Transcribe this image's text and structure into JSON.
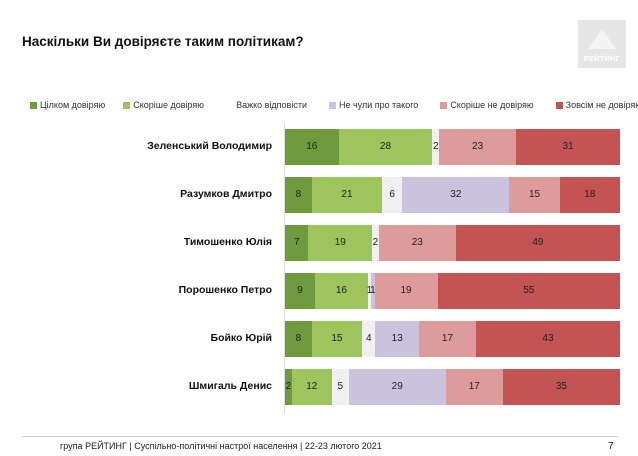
{
  "title": "Наскільки Ви довіряєте таким політикам?",
  "logo_text": "РЕЙТИНГ",
  "footer": "група РЕЙТИНГ | Суспільно-політичні настрої населення  | 22-23 лютого 2021",
  "page_number": "7",
  "colors": {
    "full_trust": "#6f9a3e",
    "rather_trust": "#9ec45d",
    "hard_to_say": "#f0f0f0",
    "not_heard": "#cbc3dd",
    "rather_distrust": "#dd9c9b",
    "full_distrust": "#c35453"
  },
  "chart_data": {
    "type": "bar",
    "orientation": "horizontal",
    "stacked": true,
    "title": "Наскільки Ви довіряєте таким політикам?",
    "categories": [
      "Зеленський Володимир",
      "Разумков Дмитро",
      "Тимошенко Юлія",
      "Порошенко Петро",
      "Бойко Юрій",
      "Шмигаль Денис"
    ],
    "series": [
      {
        "name": "Цілком довіряю",
        "color": "#6f9a3e",
        "values": [
          16,
          8,
          7,
          9,
          8,
          2
        ]
      },
      {
        "name": "Скоріше довіряю",
        "color": "#9ec45d",
        "values": [
          28,
          21,
          19,
          16,
          15,
          12
        ]
      },
      {
        "name": "Важко відповісти",
        "color": "#f0f0f0",
        "values": [
          2,
          6,
          2,
          1,
          4,
          5
        ]
      },
      {
        "name": "Не чули про такого",
        "color": "#cbc3dd",
        "values": [
          0,
          32,
          0,
          1,
          13,
          29
        ]
      },
      {
        "name": "Скоріше не довіряю",
        "color": "#dd9c9b",
        "values": [
          23,
          15,
          23,
          19,
          17,
          17
        ]
      },
      {
        "name": "Зовсім не довіряю",
        "color": "#c35453",
        "values": [
          31,
          18,
          49,
          55,
          43,
          35
        ]
      }
    ],
    "legend_position": "top",
    "grid": false
  }
}
